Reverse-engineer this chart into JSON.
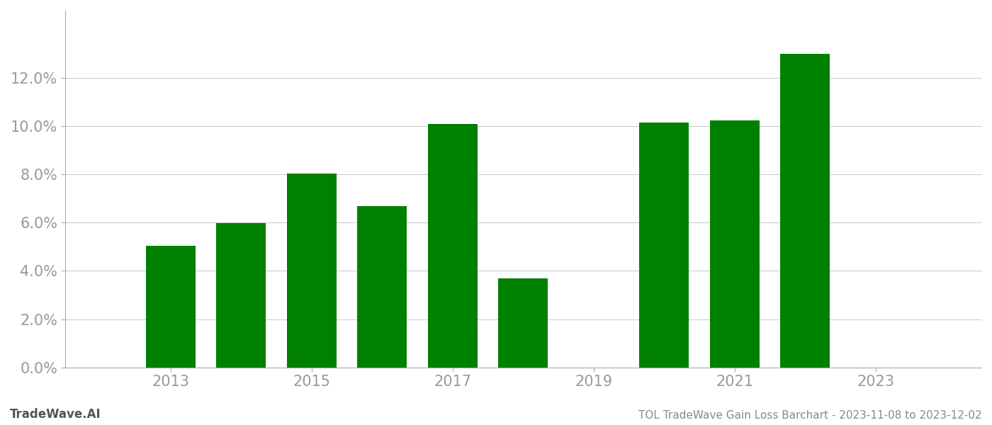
{
  "years": [
    2013,
    2014,
    2015,
    2016,
    2017,
    2018,
    2020,
    2021,
    2022
  ],
  "values": [
    0.0505,
    0.0597,
    0.0805,
    0.0668,
    0.101,
    0.0368,
    0.1015,
    0.1025,
    0.13
  ],
  "bar_color": "#008000",
  "title": "TOL TradeWave Gain Loss Barchart - 2023-11-08 to 2023-12-02",
  "watermark": "TradeWave.AI",
  "xlim": [
    2011.5,
    2024.5
  ],
  "ylim": [
    0,
    0.148
  ],
  "yticks": [
    0.0,
    0.02,
    0.04,
    0.06,
    0.08,
    0.1,
    0.12
  ],
  "xticks": [
    2013,
    2015,
    2017,
    2019,
    2021,
    2023
  ],
  "background_color": "#ffffff",
  "grid_color": "#cccccc",
  "bar_width": 0.7,
  "tick_label_color": "#999999",
  "tick_label_size": 15,
  "footer_left": "TradeWave.AI",
  "footer_right": "TOL TradeWave Gain Loss Barchart - 2023-11-08 to 2023-12-02"
}
